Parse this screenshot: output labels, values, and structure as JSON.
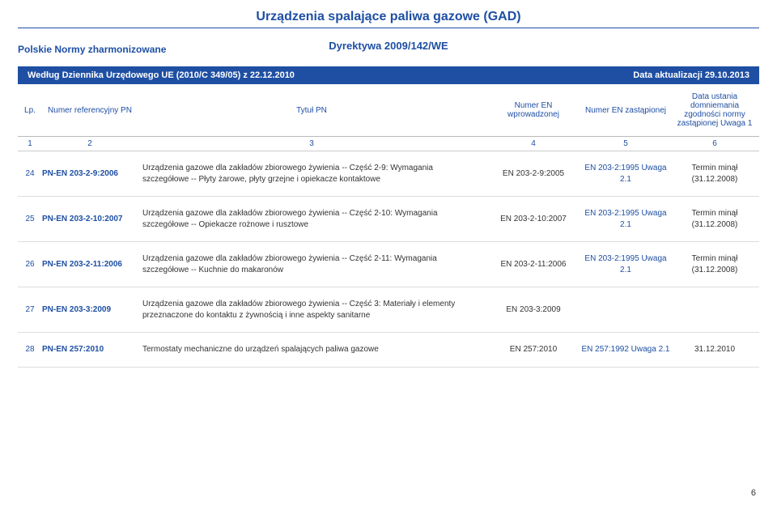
{
  "header": {
    "title": "Urządzenia spalające paliwa gazowe (GAD)",
    "subtitle": "Dyrektywa 2009/142/WE",
    "leftNote": "Polskie Normy zharmonizowane"
  },
  "blueBar": {
    "left": "Według Dziennika Urzędowego UE (2010/C 349/05) z 22.12.2010",
    "right": "Data aktualizacji 29.10.2013"
  },
  "columns": {
    "c1": "Lp.",
    "c2": "Numer referencyjny PN",
    "c3": "Tytuł PN",
    "c4": "Numer EN wprowadzonej",
    "c5": "Numer EN zastąpionej",
    "c6": "Data ustania domniemania zgodności normy zastąpionej Uwaga 1"
  },
  "colNums": {
    "c1": "1",
    "c2": "2",
    "c3": "3",
    "c4": "4",
    "c5": "5",
    "c6": "6"
  },
  "rows": [
    {
      "lp": "24",
      "ref": "PN-EN 203-2-9:2006",
      "title": "Urządzenia gazowe dla zakładów zbiorowego żywienia -- Część 2-9: Wymagania szczegółowe -- Płyty żarowe, płyty grzejne i opiekacze kontaktowe",
      "en": "EN 203-2-9:2005",
      "replaced": "EN 203-2:1995 Uwaga 2.1",
      "date": "Termin minął (31.12.2008)"
    },
    {
      "lp": "25",
      "ref": "PN-EN 203-2-10:2007",
      "title": "Urządzenia gazowe dla zakładów zbiorowego żywienia -- Część 2-10: Wymagania szczegółowe -- Opiekacze rożnowe i rusztowe",
      "en": "EN 203-2-10:2007",
      "replaced": "EN 203-2:1995 Uwaga 2.1",
      "date": "Termin minął (31.12.2008)"
    },
    {
      "lp": "26",
      "ref": "PN-EN 203-2-11:2006",
      "title": "Urządzenia gazowe dla zakładów zbiorowego żywienia -- Część 2-11: Wymagania szczegółowe -- Kuchnie do makaronów",
      "en": "EN 203-2-11:2006",
      "replaced": "EN 203-2:1995 Uwaga 2.1",
      "date": "Termin minął (31.12.2008)"
    },
    {
      "lp": "27",
      "ref": "PN-EN 203-3:2009",
      "title": "Urządzenia gazowe dla zakładów zbiorowego żywienia -- Część 3: Materiały i elementy przeznaczone do kontaktu z żywnością i inne aspekty sanitarne",
      "en": "EN 203-3:2009",
      "replaced": "",
      "date": ""
    },
    {
      "lp": "28",
      "ref": "PN-EN 257:2010",
      "title": "Termostaty mechaniczne do urządzeń spalających paliwa gazowe",
      "en": "EN 257:2010",
      "replaced": "EN 257:1992 Uwaga 2.1",
      "date": "31.12.2010"
    }
  ],
  "pageNumber": "6",
  "styling": {
    "brandBlue": "#1e4fa3",
    "background": "#ffffff",
    "borderGray": "#cccccc",
    "textGray": "#333333",
    "titleFontSize": 16,
    "bodyFontSize": 10,
    "pageWidth": 960,
    "pageHeight": 625
  }
}
